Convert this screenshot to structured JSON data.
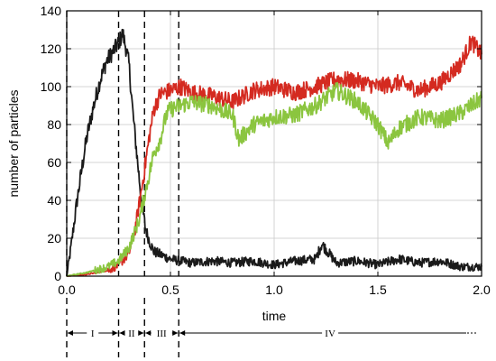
{
  "chart_data": {
    "type": "line",
    "xlabel": "time",
    "ylabel": "number of particles",
    "xlim": [
      0,
      2.0
    ],
    "ylim": [
      0,
      140
    ],
    "x_ticks": [
      "0.0",
      "0.5",
      "1.0",
      "1.5",
      "2.0"
    ],
    "y_ticks": [
      "0",
      "20",
      "40",
      "60",
      "80",
      "100",
      "120",
      "140"
    ],
    "grid": true,
    "legend": "none",
    "series": [
      {
        "color": "#1a1a1a",
        "x": [
          0.0,
          0.02,
          0.05,
          0.08,
          0.1,
          0.13,
          0.16,
          0.19,
          0.22,
          0.25,
          0.27,
          0.29,
          0.3,
          0.32,
          0.34,
          0.36,
          0.38,
          0.4,
          0.42,
          0.44,
          0.46,
          0.5,
          0.55,
          0.6,
          0.7,
          0.8,
          0.9,
          1.0,
          1.1,
          1.2,
          1.23,
          1.3,
          1.4,
          1.5,
          1.6,
          1.7,
          1.8,
          1.9,
          2.0
        ],
        "values": [
          0,
          15,
          40,
          62,
          75,
          90,
          103,
          113,
          118,
          123,
          128,
          118,
          112,
          85,
          62,
          40,
          25,
          18,
          13,
          12,
          11,
          9,
          8,
          7,
          8,
          7,
          8,
          6,
          8,
          9,
          17,
          7,
          8,
          6,
          9,
          7,
          8,
          5,
          5
        ]
      },
      {
        "color": "#d42a20",
        "x": [
          0.0,
          0.1,
          0.2,
          0.25,
          0.3,
          0.33,
          0.36,
          0.38,
          0.4,
          0.42,
          0.45,
          0.5,
          0.55,
          0.6,
          0.7,
          0.8,
          0.9,
          1.0,
          1.1,
          1.2,
          1.3,
          1.4,
          1.5,
          1.6,
          1.7,
          1.8,
          1.9,
          1.95,
          2.0
        ],
        "values": [
          0,
          1,
          3,
          6,
          12,
          25,
          45,
          60,
          75,
          88,
          96,
          98,
          100,
          97,
          95,
          92,
          98,
          100,
          97,
          100,
          104,
          103,
          100,
          102,
          98,
          102,
          112,
          124,
          117
        ]
      },
      {
        "color": "#8bc53f",
        "x": [
          0.0,
          0.1,
          0.2,
          0.25,
          0.3,
          0.35,
          0.38,
          0.4,
          0.42,
          0.45,
          0.48,
          0.5,
          0.55,
          0.6,
          0.7,
          0.8,
          0.83,
          0.9,
          1.0,
          1.1,
          1.2,
          1.3,
          1.4,
          1.5,
          1.55,
          1.6,
          1.7,
          1.8,
          1.9,
          2.0
        ],
        "values": [
          0,
          2,
          5,
          8,
          15,
          30,
          45,
          55,
          65,
          72,
          85,
          88,
          90,
          92,
          90,
          85,
          72,
          80,
          84,
          85,
          90,
          98,
          92,
          80,
          70,
          78,
          84,
          82,
          86,
          94
        ]
      }
    ],
    "phase_boundaries": [
      0.0,
      0.25,
      0.375,
      0.54
    ],
    "phases": [
      {
        "label": "I",
        "from": 0.0,
        "to": 0.25
      },
      {
        "label": "II",
        "from": 0.25,
        "to": 0.375
      },
      {
        "label": "III",
        "from": 0.375,
        "to": 0.54
      },
      {
        "label": "IV",
        "from": 0.54,
        "to": 2.0
      }
    ]
  }
}
